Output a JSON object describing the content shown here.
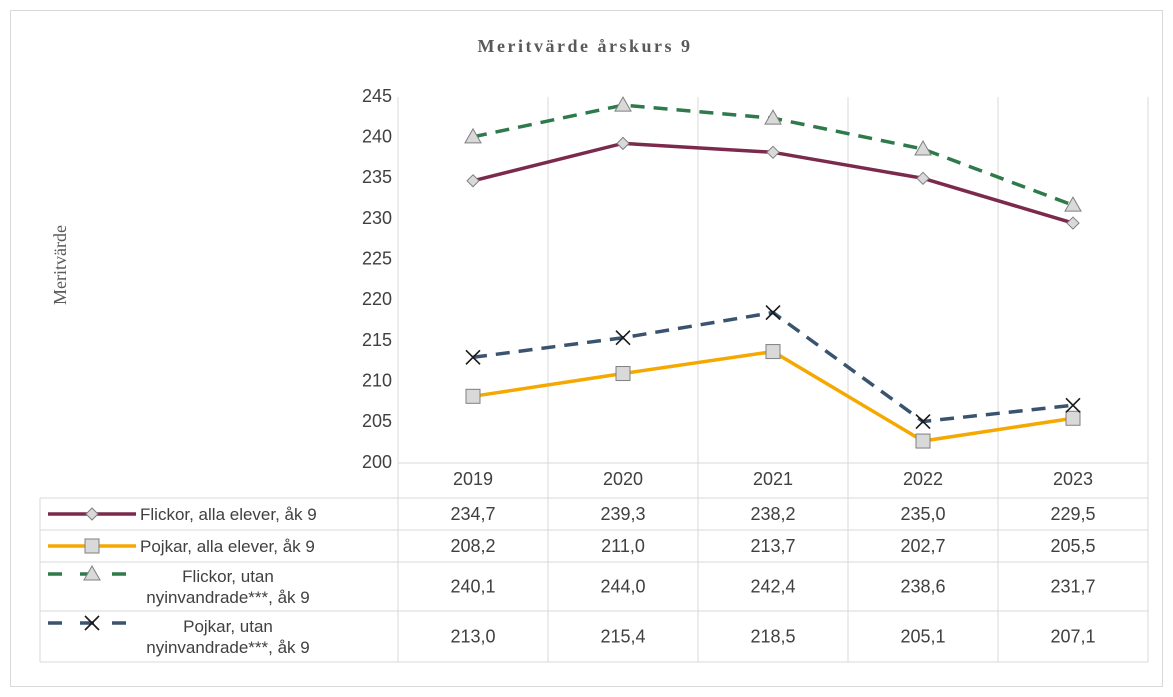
{
  "chart_data": {
    "type": "line",
    "title": "Meritvärde årskurs 9",
    "y_label": "Meritvärde",
    "categories": [
      "2019",
      "2020",
      "2021",
      "2022",
      "2023"
    ],
    "ylim": [
      200,
      245
    ],
    "yticks": [
      200,
      205,
      210,
      215,
      220,
      225,
      230,
      235,
      240,
      245
    ],
    "grid": true,
    "data_table": true,
    "series": [
      {
        "name": "Flickor, alla elever, åk 9",
        "color": "#7b2a4e",
        "dashed": false,
        "marker": "diamond",
        "values": [
          234.7,
          239.3,
          238.2,
          235.0,
          229.5
        ],
        "value_labels": [
          "234,7",
          "239,3",
          "238,2",
          "235,0",
          "229,5"
        ]
      },
      {
        "name": "Pojkar, alla elever, åk 9",
        "color": "#f5a800",
        "dashed": false,
        "marker": "square",
        "values": [
          208.2,
          211.0,
          213.7,
          202.7,
          205.5
        ],
        "value_labels": [
          "208,2",
          "211,0",
          "213,7",
          "202,7",
          "205,5"
        ]
      },
      {
        "name": "Flickor, utan nyinvandrade***, åk 9",
        "color": "#2e7a4b",
        "dashed": true,
        "marker": "triangle",
        "values": [
          240.1,
          244.0,
          242.4,
          238.6,
          231.7
        ],
        "value_labels": [
          "240,1",
          "244,0",
          "242,4",
          "238,6",
          "231,7"
        ]
      },
      {
        "name": "Pojkar, utan nyinvandrade***, åk 9",
        "color": "#3a5470",
        "dashed": true,
        "marker": "x",
        "values": [
          213.0,
          215.4,
          218.5,
          205.1,
          207.1
        ],
        "value_labels": [
          "213,0",
          "215,4",
          "218,5",
          "205,1",
          "207,1"
        ]
      }
    ]
  }
}
